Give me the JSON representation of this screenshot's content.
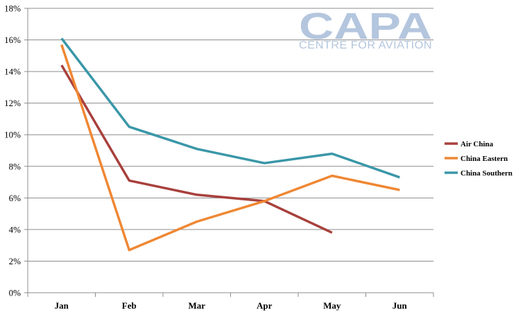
{
  "logo": {
    "main": "CAPA",
    "sub": "CENTRE FOR AVIATION"
  },
  "chart_data": {
    "type": "line",
    "categories": [
      "Jan",
      "Feb",
      "Mar",
      "Apr",
      "May",
      "Jun"
    ],
    "ylim": [
      0,
      18
    ],
    "ytick_step": 2,
    "ytick_suffix": "%",
    "grid": true,
    "legend_position": "right",
    "title": "",
    "xlabel": "",
    "ylabel": "",
    "series": [
      {
        "name": "Air China",
        "color": "#a8403c",
        "values": [
          14.4,
          7.1,
          6.2,
          5.8,
          3.8,
          null
        ]
      },
      {
        "name": "China Eastern",
        "color": "#ef8733",
        "values": [
          15.7,
          2.7,
          4.5,
          5.8,
          7.4,
          6.5
        ]
      },
      {
        "name": "China Southern",
        "color": "#3a97a8",
        "values": [
          16.1,
          10.5,
          9.1,
          8.2,
          8.8,
          7.3
        ]
      }
    ]
  }
}
